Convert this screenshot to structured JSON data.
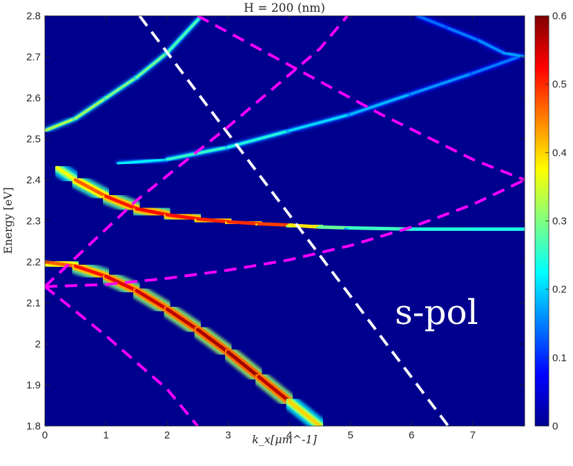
{
  "chart_data": {
    "type": "heatmap",
    "title": "H = 200 (nm)",
    "xlabel": "k_x[μm^-1]",
    "ylabel": "Energy [eV]",
    "annotation": "s-pol",
    "xlim": [
      0,
      7.85
    ],
    "ylim": [
      1.8,
      2.8
    ],
    "x_ticks": [
      "0",
      "1",
      "2",
      "3",
      "4",
      "5",
      "6",
      "7"
    ],
    "y_ticks": [
      "1.8",
      "1.9",
      "2",
      "2.1",
      "2.2",
      "2.3",
      "2.4",
      "2.5",
      "2.6",
      "2.7",
      "2.8"
    ],
    "colorbar": {
      "colormap": "jet",
      "range": [
        0,
        0.6
      ],
      "ticks": [
        "0",
        "0.1",
        "0.2",
        "0.3",
        "0.4",
        "0.5",
        "0.6"
      ]
    },
    "background_color": "#00008f",
    "bands": [
      {
        "points": [
          [
            0,
            2.2
          ],
          [
            0.5,
            2.19
          ],
          [
            1,
            2.165
          ],
          [
            1.5,
            2.13
          ],
          [
            2,
            2.085
          ],
          [
            2.5,
            2.035
          ],
          [
            3,
            1.98
          ],
          [
            3.5,
            1.92
          ],
          [
            4,
            1.86
          ],
          [
            4.5,
            1.8
          ]
        ],
        "peak": [
          0.44,
          0.5,
          0.53,
          0.55,
          0.56,
          0.57,
          0.58,
          0.58,
          0.55,
          0.25
        ]
      },
      {
        "points": [
          [
            0.2,
            2.43
          ],
          [
            0.5,
            2.4
          ],
          [
            1,
            2.36
          ],
          [
            1.5,
            2.33
          ],
          [
            2,
            2.315
          ],
          [
            2.5,
            2.305
          ],
          [
            3,
            2.298
          ],
          [
            3.5,
            2.293
          ],
          [
            4,
            2.29
          ],
          [
            4.5,
            2.285
          ],
          [
            5,
            2.283
          ],
          [
            6,
            2.28
          ],
          [
            7,
            2.28
          ],
          [
            7.85,
            2.28
          ]
        ],
        "peak": [
          0.3,
          0.44,
          0.5,
          0.52,
          0.52,
          0.51,
          0.5,
          0.5,
          0.48,
          0.3,
          0.27,
          0.25,
          0.24,
          0.24
        ]
      },
      {
        "points": [
          [
            0,
            2.52
          ],
          [
            0.5,
            2.55
          ],
          [
            1,
            2.6
          ],
          [
            1.5,
            2.65
          ],
          [
            2,
            2.71
          ],
          [
            2.5,
            2.79
          ],
          [
            2.55,
            2.8
          ]
        ],
        "peak": [
          0.34,
          0.34,
          0.32,
          0.3,
          0.3,
          0.26,
          0.25
        ]
      },
      {
        "points": [
          [
            1.2,
            2.44
          ],
          [
            2,
            2.45
          ],
          [
            3,
            2.48
          ],
          [
            4,
            2.52
          ],
          [
            5,
            2.56
          ],
          [
            6,
            2.61
          ],
          [
            7,
            2.66
          ],
          [
            7.75,
            2.7
          ]
        ],
        "peak": [
          0.2,
          0.25,
          0.28,
          0.22,
          0.2,
          0.18,
          0.16,
          0.15
        ]
      },
      {
        "points": [
          [
            6.1,
            2.8
          ],
          [
            6.6,
            2.77
          ],
          [
            7.1,
            2.74
          ],
          [
            7.5,
            2.71
          ],
          [
            7.85,
            2.7
          ]
        ],
        "peak": [
          0.14,
          0.15,
          0.16,
          0.17,
          0.18
        ]
      }
    ],
    "overlay_lines": [
      {
        "color": "#ffffff",
        "style": "dashed",
        "points": [
          [
            1.55,
            2.8
          ],
          [
            6.6,
            1.8
          ]
        ]
      },
      {
        "color": "#ff00ff",
        "style": "dashed",
        "points": [
          [
            0,
            2.14
          ],
          [
            1,
            2.145
          ],
          [
            2,
            2.16
          ],
          [
            3,
            2.18
          ],
          [
            4,
            2.205
          ],
          [
            5,
            2.24
          ],
          [
            6,
            2.285
          ],
          [
            7,
            2.34
          ],
          [
            7.85,
            2.4
          ]
        ]
      },
      {
        "color": "#ff00ff",
        "style": "dashed",
        "points": [
          [
            0,
            2.14
          ],
          [
            1.5,
            2.35
          ],
          [
            3,
            2.53
          ],
          [
            4.5,
            2.72
          ],
          [
            4.95,
            2.8
          ]
        ]
      },
      {
        "color": "#ff00ff",
        "style": "dashed",
        "points": [
          [
            0,
            2.14
          ],
          [
            1,
            2.02
          ],
          [
            2,
            1.89
          ],
          [
            2.5,
            1.8
          ]
        ]
      },
      {
        "color": "#ff00ff",
        "style": "dashed",
        "points": [
          [
            2.5,
            2.8
          ],
          [
            4,
            2.68
          ],
          [
            5.5,
            2.56
          ],
          [
            7,
            2.45
          ],
          [
            7.85,
            2.4
          ]
        ]
      }
    ]
  }
}
